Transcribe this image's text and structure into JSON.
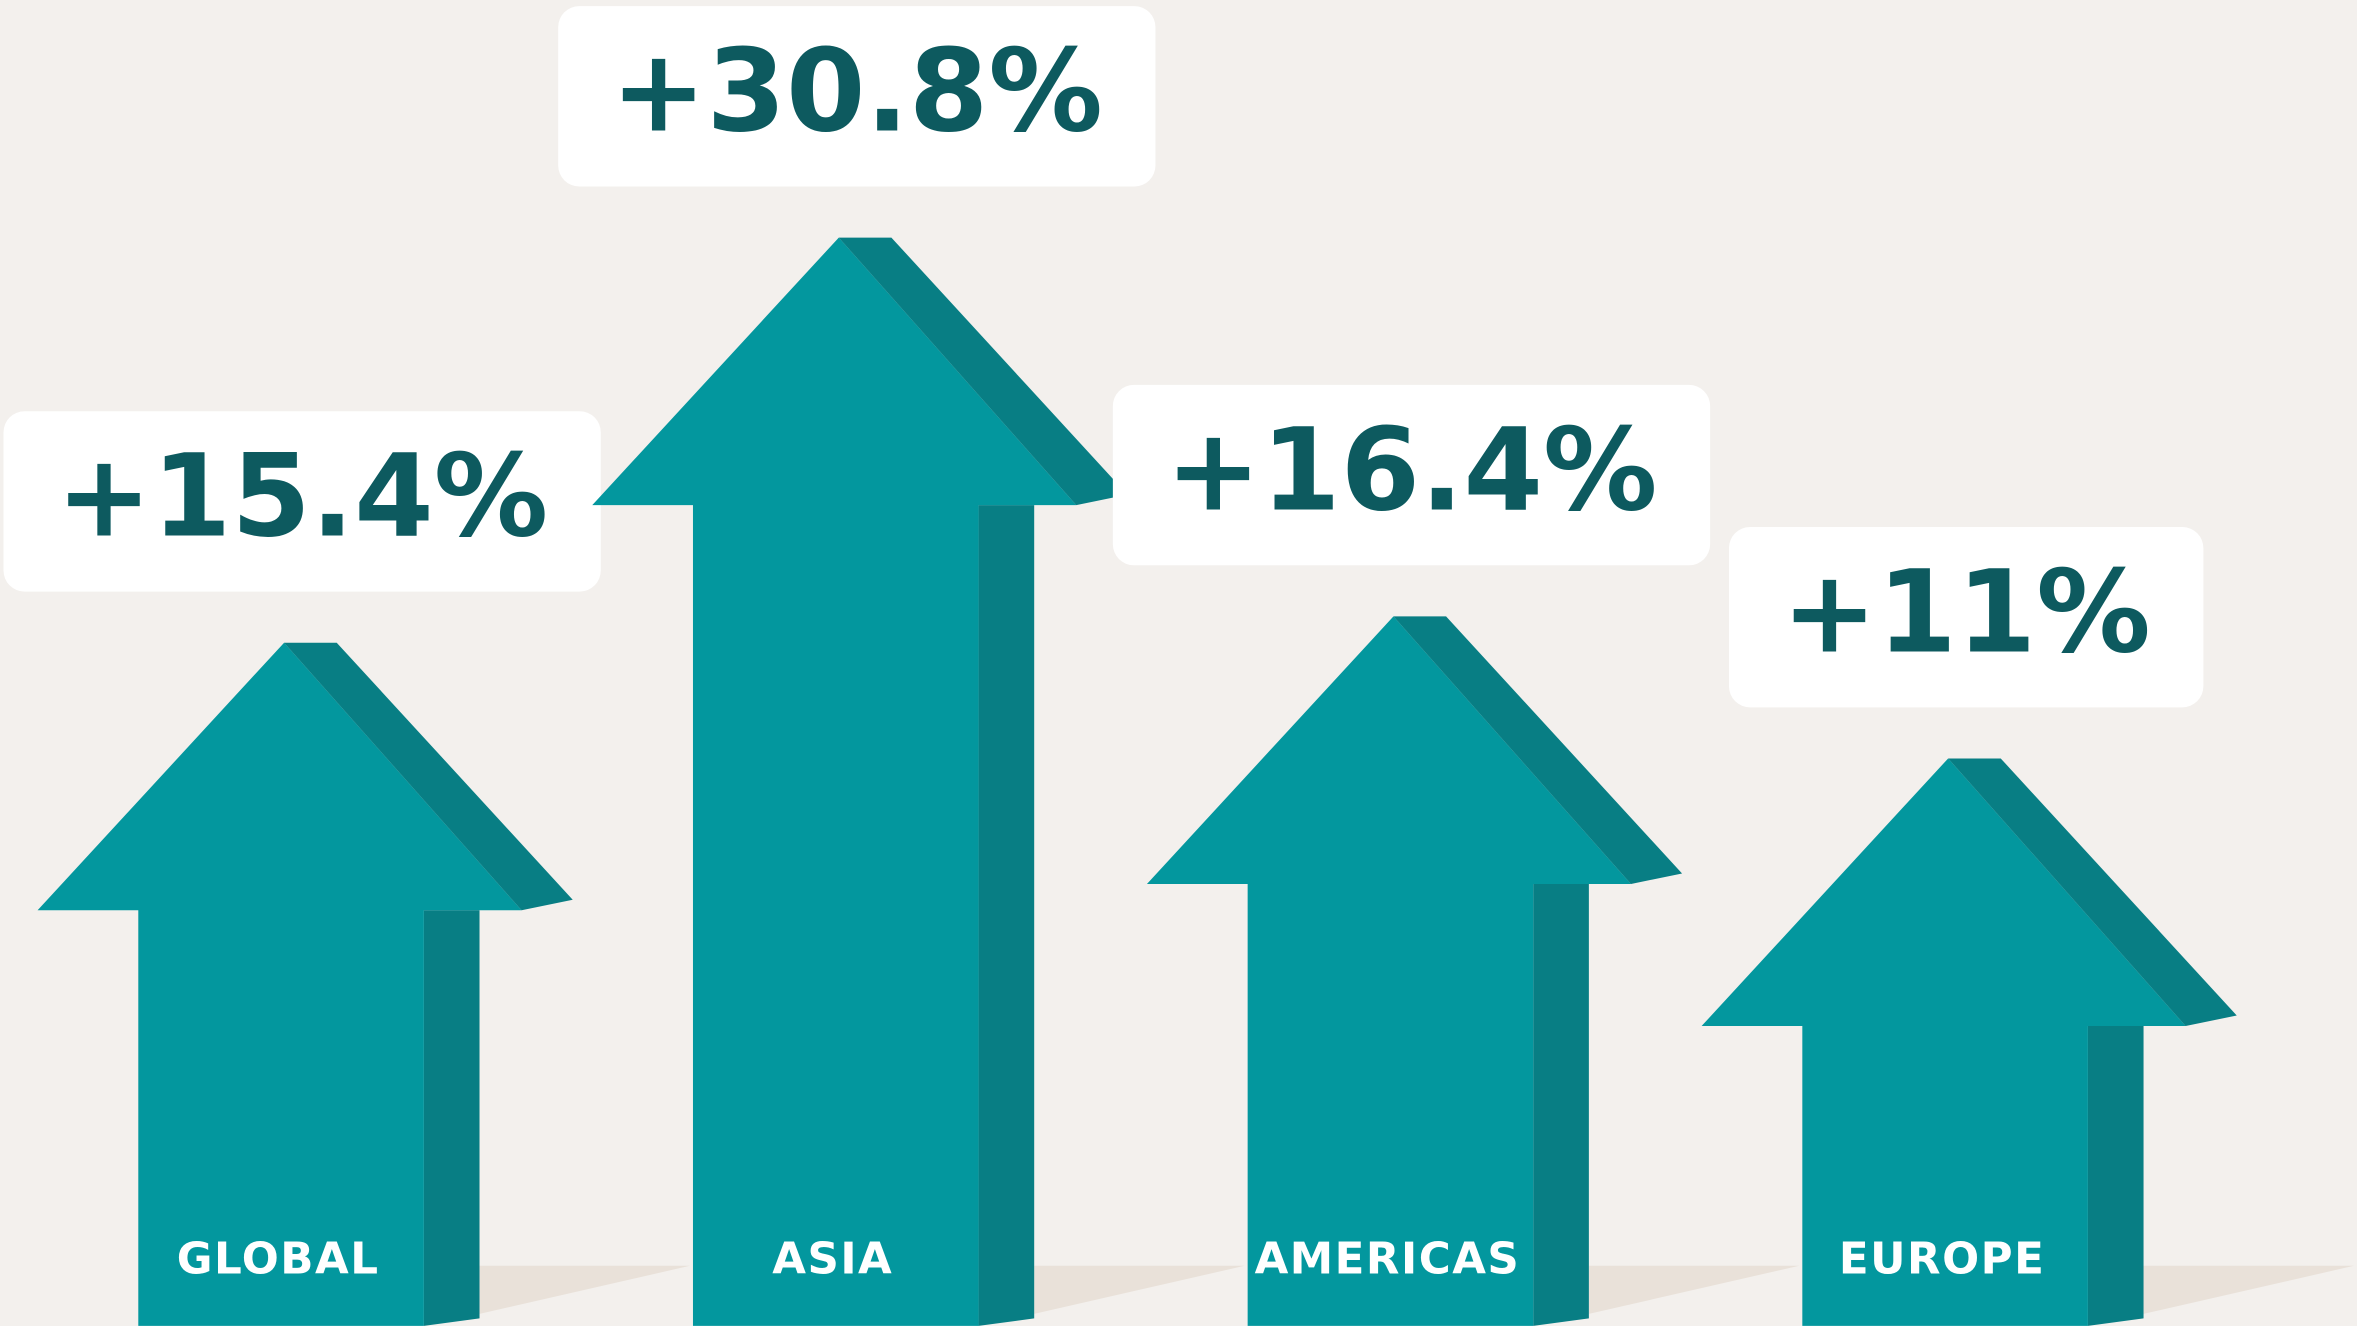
{
  "chart_data": {
    "type": "arrow",
    "categories": [
      "GLOBAL",
      "ASIA",
      "AMERICAS",
      "EUROPE"
    ],
    "values": [
      15.4,
      30.8,
      16.4,
      11
    ],
    "value_labels": [
      "+15.4%",
      "+30.8%",
      "+16.4%",
      "+11%"
    ],
    "color": "#03979e",
    "side_color": "#087e84"
  }
}
